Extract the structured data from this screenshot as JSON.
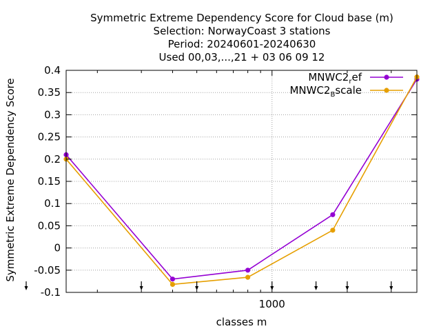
{
  "chart_data": {
    "type": "line",
    "title_lines": [
      "Symmetric Extreme Dependency Score  for Cloud base (m)",
      "Selection: NorwayCoast      3 stations",
      "Period: 20240601-20240630",
      "Used 00,03,...,21 + 03 06 09 12"
    ],
    "xlabel": "classes m",
    "ylabel": "Symmetric Extreme Dependency Score",
    "x_scale": "log",
    "xlim": [
      150,
      3800
    ],
    "ylim": [
      -0.1,
      0.4
    ],
    "y_ticks": [
      "-0.1",
      "-0.05",
      "0",
      "0.05",
      "0.1",
      "0.15",
      "0.2",
      "0.25",
      "0.3",
      "0.35",
      "0.4"
    ],
    "x_ticks": [
      {
        "value": 1000,
        "label": "1000"
      }
    ],
    "grid": true,
    "legend_position": "top-right",
    "class_markers_x": [
      100,
      300,
      500,
      1000,
      1500,
      2000,
      3000
    ],
    "x": [
      150,
      400,
      800,
      1750,
      3800
    ],
    "series": [
      {
        "name": "MNWC2",
        "name_sub": "r",
        "name_suffix": "ef",
        "color": "#9400d3",
        "values": [
          0.21,
          -0.07,
          -0.05,
          0.075,
          0.38
        ]
      },
      {
        "name": "MNWC2",
        "name_sub": "B",
        "name_suffix": "scale",
        "color": "#e69f00",
        "values": [
          0.2,
          -0.082,
          -0.066,
          0.04,
          0.385
        ]
      }
    ]
  }
}
